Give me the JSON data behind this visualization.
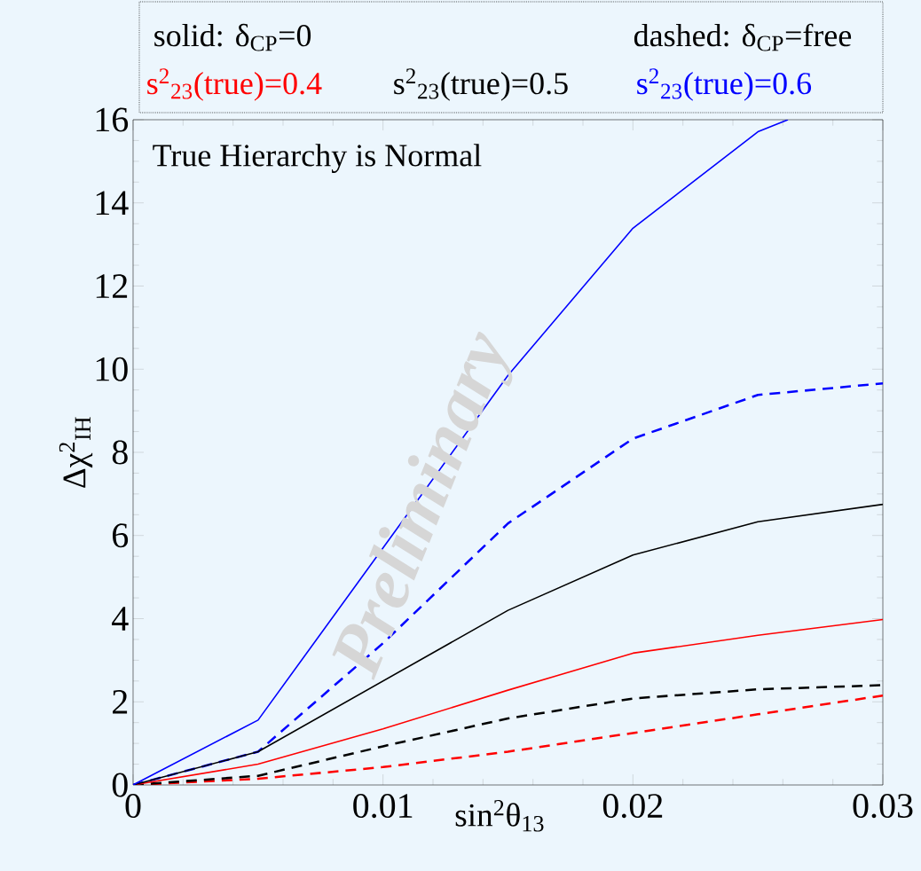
{
  "chart_data": {
    "type": "line",
    "xlabel": "sin$^{2}$θ$_{13}$",
    "ylabel": "Δχ$^{2}$$_{IH}$",
    "x": [
      0,
      0.005,
      0.01,
      0.015,
      0.02,
      0.025,
      0.03
    ],
    "series": [
      {
        "color": "#ff0000",
        "line_style": "dashed",
        "values": [
          0,
          0.15,
          0.43,
          0.8,
          1.25,
          1.7,
          2.15
        ]
      },
      {
        "color": "#000000",
        "line_style": "dashed",
        "values": [
          0,
          0.22,
          0.93,
          1.6,
          2.08,
          2.3,
          2.4
        ]
      },
      {
        "color": "#0000ff",
        "line_style": "dashed",
        "values": [
          0,
          0.8,
          3.41,
          6.29,
          8.33,
          9.38,
          9.66
        ]
      },
      {
        "name": "s$^{2}$$_{23}$(true)=0.4",
        "color": "#ff0000",
        "line_style": "solid",
        "values": [
          0,
          0.5,
          1.35,
          2.28,
          3.17,
          3.6,
          3.98
        ]
      },
      {
        "name": "s$^{2}$$_{23}$(true)=0.5",
        "color": "#000000",
        "line_style": "solid",
        "values": [
          0,
          0.8,
          2.5,
          4.2,
          5.53,
          6.33,
          6.75
        ]
      },
      {
        "name": "s$^{2}$$_{23}$(true)=0.6",
        "color": "#0000ff",
        "line_style": "solid",
        "x": [
          0,
          0.005,
          0.01,
          0.015,
          0.02,
          0.025,
          0.0262
        ],
        "values": [
          0,
          1.56,
          5.7,
          9.85,
          13.39,
          15.71,
          16
        ]
      }
    ],
    "xlim": [
      0,
      0.03
    ],
    "ylim": [
      0,
      16
    ],
    "xticks": [
      0,
      0.01,
      0.02,
      0.03
    ],
    "yticks": [
      0,
      2,
      4,
      6,
      8,
      10,
      12,
      14,
      16
    ],
    "legend": "top",
    "marker": "none",
    "grid": false,
    "annotations": [
      "solid: δ$_{CP}$=0",
      "dashed: δ$_{CP}$=free",
      "True Hierarchy is Normal",
      "Preliminary"
    ]
  }
}
